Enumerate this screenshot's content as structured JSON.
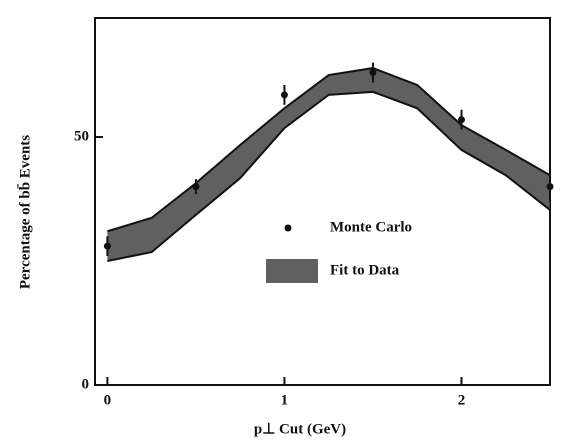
{
  "chart_data": {
    "type": "line",
    "xlabel": "p⊥ Cut (GeV)",
    "ylabel": "Percentage of bb̄ Events",
    "xlim": [
      -0.07,
      2.5
    ],
    "xticks": [
      0,
      1,
      2
    ],
    "ylim": [
      0,
      74
    ],
    "yticks": [
      0,
      50
    ],
    "legend": "center",
    "series": [
      {
        "name": "Fit to Data",
        "kind": "band",
        "color": "#444444",
        "x": [
          0,
          0.25,
          0.5,
          0.75,
          1.0,
          1.25,
          1.5,
          1.75,
          2.0,
          2.25,
          2.5
        ],
        "upper": [
          31,
          33.7,
          40.7,
          48.4,
          55.8,
          62.5,
          63.9,
          60.5,
          52.4,
          47.4,
          42.3
        ],
        "lower": [
          25,
          26.8,
          34.3,
          41.7,
          51.8,
          58.5,
          59.1,
          55.8,
          47.4,
          42.3,
          35.3
        ]
      },
      {
        "name": "Monte Carlo",
        "kind": "points",
        "color": "#111111",
        "x": [
          0,
          0.5,
          1.0,
          1.5,
          2.0,
          2.5
        ],
        "values": [
          28,
          40,
          58.5,
          63,
          53.5,
          40
        ],
        "errors": [
          2,
          1.5,
          2,
          2,
          2,
          3
        ]
      }
    ]
  }
}
